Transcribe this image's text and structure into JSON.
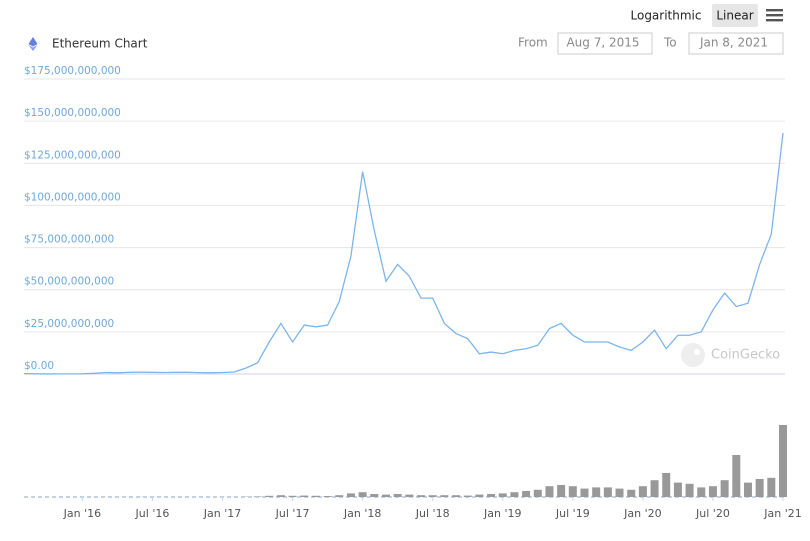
{
  "header": {
    "title": "Ethereum Chart",
    "from_label": "From",
    "from_date": "Aug 7, 2015",
    "to_label": "To",
    "to_date": "Jan 8, 2021",
    "scale_options": [
      "Logarithmic",
      "Linear"
    ],
    "active_scale": "Linear"
  },
  "watermark": "CoinGecko",
  "chart_data": {
    "type": "line",
    "x": [
      "2015-08",
      "2015-09",
      "2015-10",
      "2015-11",
      "2015-12",
      "2016-01",
      "2016-02",
      "2016-03",
      "2016-04",
      "2016-05",
      "2016-06",
      "2016-07",
      "2016-08",
      "2016-09",
      "2016-10",
      "2016-11",
      "2016-12",
      "2017-01",
      "2017-02",
      "2017-03",
      "2017-04",
      "2017-05",
      "2017-06",
      "2017-07",
      "2017-08",
      "2017-09",
      "2017-10",
      "2017-11",
      "2017-12",
      "2018-01",
      "2018-02",
      "2018-03",
      "2018-04",
      "2018-05",
      "2018-06",
      "2018-07",
      "2018-08",
      "2018-09",
      "2018-10",
      "2018-11",
      "2018-12",
      "2019-01",
      "2019-02",
      "2019-03",
      "2019-04",
      "2019-05",
      "2019-06",
      "2019-07",
      "2019-08",
      "2019-09",
      "2019-10",
      "2019-11",
      "2019-12",
      "2020-01",
      "2020-02",
      "2020-03",
      "2020-04",
      "2020-05",
      "2020-06",
      "2020-07",
      "2020-08",
      "2020-09",
      "2020-10",
      "2020-11",
      "2020-12",
      "2021-01"
    ],
    "series": [
      {
        "color": "#7cb5ec",
        "values": [
          200000000,
          100000000,
          50000000,
          70000000,
          70000000,
          100000000,
          400000000,
          900000000,
          700000000,
          1000000000,
          1100000000,
          1000000000,
          900000000,
          1000000000,
          1000000000,
          800000000,
          700000000,
          900000000,
          1200000000,
          3500000000,
          6600000000,
          19000000000,
          30000000000,
          19000000000,
          29000000000,
          28000000000,
          29000000000,
          43000000000,
          70000000000,
          120000000000,
          85000000000,
          55000000000,
          65000000000,
          58000000000,
          45000000000,
          45000000000,
          30000000000,
          24000000000,
          21000000000,
          12000000000,
          13000000000,
          12000000000,
          14000000000,
          15000000000,
          17000000000,
          27000000000,
          30000000000,
          23000000000,
          19000000000,
          19000000000,
          19000000000,
          16000000000,
          14000000000,
          19000000000,
          26000000000,
          15000000000,
          23000000000,
          23000000000,
          25000000000,
          38000000000,
          48000000000,
          40000000000,
          42000000000,
          65000000000,
          83000000000,
          143000000000
        ]
      },
      {
        "color": "#999999",
        "axis": "y2",
        "type": "bar",
        "values": [
          10000000,
          10000000,
          10000000,
          10000000,
          10000000,
          20000000,
          50000000,
          100000000,
          80000000,
          100000000,
          150000000,
          100000000,
          80000000,
          80000000,
          80000000,
          70000000,
          60000000,
          80000000,
          100000000,
          300000000,
          500000000,
          1000000000,
          1500000000,
          1000000000,
          1200000000,
          1000000000,
          800000000,
          1500000000,
          3000000000,
          4000000000,
          2500000000,
          2000000000,
          2500000000,
          2000000000,
          1500000000,
          1500000000,
          1500000000,
          1500000000,
          1200000000,
          2000000000,
          2500000000,
          3000000000,
          4000000000,
          5000000000,
          6000000000,
          9000000000,
          10000000000,
          9000000000,
          7000000000,
          8000000000,
          8000000000,
          7000000000,
          6000000000,
          9000000000,
          14000000000,
          20000000000,
          12000000000,
          11000000000,
          8000000000,
          9000000000,
          14000000000,
          35000000000,
          12000000000,
          15000000000,
          16000000000,
          60000000000
        ]
      }
    ],
    "xlim": [
      "2015-08",
      "2021-01"
    ],
    "xticks": [
      {
        "value": "2016-01",
        "label": "Jan '16"
      },
      {
        "value": "2016-07",
        "label": "Jul '16"
      },
      {
        "value": "2017-01",
        "label": "Jan '17"
      },
      {
        "value": "2017-07",
        "label": "Jul '17"
      },
      {
        "value": "2018-01",
        "label": "Jan '18"
      },
      {
        "value": "2018-07",
        "label": "Jul '18"
      },
      {
        "value": "2019-01",
        "label": "Jan '19"
      },
      {
        "value": "2019-07",
        "label": "Jul '19"
      },
      {
        "value": "2020-01",
        "label": "Jan '20"
      },
      {
        "value": "2020-07",
        "label": "Jul '20"
      },
      {
        "value": "2021-01",
        "label": "Jan '21"
      }
    ],
    "ylim": [
      0,
      175000000000
    ],
    "yticks": [
      {
        "value": 0,
        "label": "$0.00"
      },
      {
        "value": 25000000000,
        "label": "$25,000,000,000"
      },
      {
        "value": 50000000000,
        "label": "$50,000,000,000"
      },
      {
        "value": 75000000000,
        "label": "$75,000,000,000"
      },
      {
        "value": 100000000000,
        "label": "$100,000,000,000"
      },
      {
        "value": 125000000000,
        "label": "$125,000,000,000"
      },
      {
        "value": 150000000000,
        "label": "$150,000,000,000"
      },
      {
        "value": 175000000000,
        "label": "$175,000,000,000"
      }
    ],
    "y2lim": [
      0,
      60000000000
    ],
    "grid": true
  }
}
